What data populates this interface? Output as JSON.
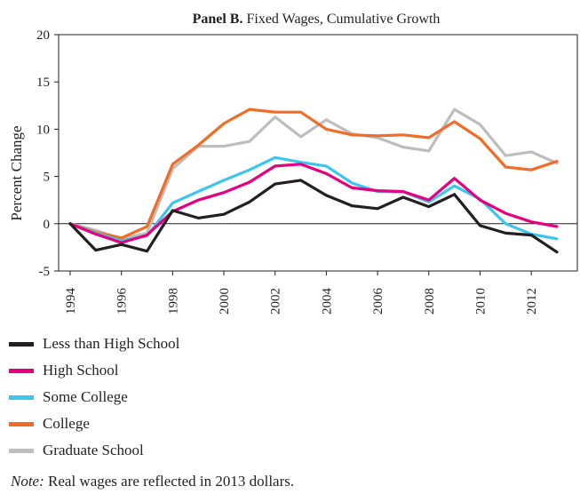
{
  "chart_data": {
    "type": "line",
    "title_prefix": "Panel B.",
    "title": "Fixed Wages, Cumulative Growth",
    "xlabel": "",
    "ylabel": "Percent Change",
    "ylim": [
      -5,
      20
    ],
    "xlim": [
      1994,
      2013
    ],
    "yticks": [
      "20",
      "15",
      "10",
      "5",
      "0",
      "-5"
    ],
    "xticks": [
      "1994",
      "1996",
      "1998",
      "2000",
      "2002",
      "2004",
      "2006",
      "2008",
      "2010",
      "2012"
    ],
    "grid": false,
    "zero_line": true,
    "x": [
      1994,
      1995,
      1996,
      1997,
      1998,
      1999,
      2000,
      2001,
      2002,
      2003,
      2004,
      2005,
      2006,
      2007,
      2008,
      2009,
      2010,
      2011,
      2012,
      2013
    ],
    "series": [
      {
        "name": "Less than High School",
        "color": "#231f20",
        "values": [
          0,
          -2.8,
          -2.2,
          -2.9,
          1.4,
          0.6,
          1.0,
          2.3,
          4.2,
          4.6,
          3.0,
          1.9,
          1.6,
          2.8,
          1.8,
          3.1,
          -0.2,
          -1.0,
          -1.2,
          -3.0
        ]
      },
      {
        "name": "High School",
        "color": "#e6007e",
        "values": [
          0,
          -1.1,
          -2.0,
          -1.2,
          1.3,
          2.5,
          3.3,
          4.4,
          6.1,
          6.3,
          5.3,
          3.8,
          3.5,
          3.4,
          2.5,
          4.8,
          2.5,
          1.1,
          0.2,
          -0.3
        ]
      },
      {
        "name": "Some College",
        "color": "#3cc5f0",
        "values": [
          0,
          -1.0,
          -1.8,
          -1.3,
          2.2,
          3.4,
          4.6,
          5.7,
          7.0,
          6.5,
          6.1,
          4.3,
          3.4,
          3.4,
          2.3,
          4.0,
          2.6,
          0.0,
          -1.1,
          -1.6
        ]
      },
      {
        "name": "College",
        "color": "#ef6d26",
        "values": [
          0,
          -0.9,
          -1.5,
          -0.3,
          6.3,
          8.3,
          10.6,
          12.1,
          11.8,
          11.8,
          10.0,
          9.4,
          9.3,
          9.4,
          9.1,
          10.8,
          9.0,
          6.0,
          5.7,
          6.6
        ]
      },
      {
        "name": "Graduate School",
        "color": "#bdbdbd",
        "values": [
          0,
          -0.7,
          -1.6,
          -1.0,
          5.8,
          8.2,
          8.2,
          8.7,
          11.3,
          9.2,
          11.0,
          9.5,
          9.1,
          8.1,
          7.7,
          12.1,
          10.5,
          7.2,
          7.6,
          6.4
        ]
      }
    ]
  },
  "note": {
    "prefix": "Note:",
    "text": "Real wages are reflected in 2013 dollars."
  }
}
